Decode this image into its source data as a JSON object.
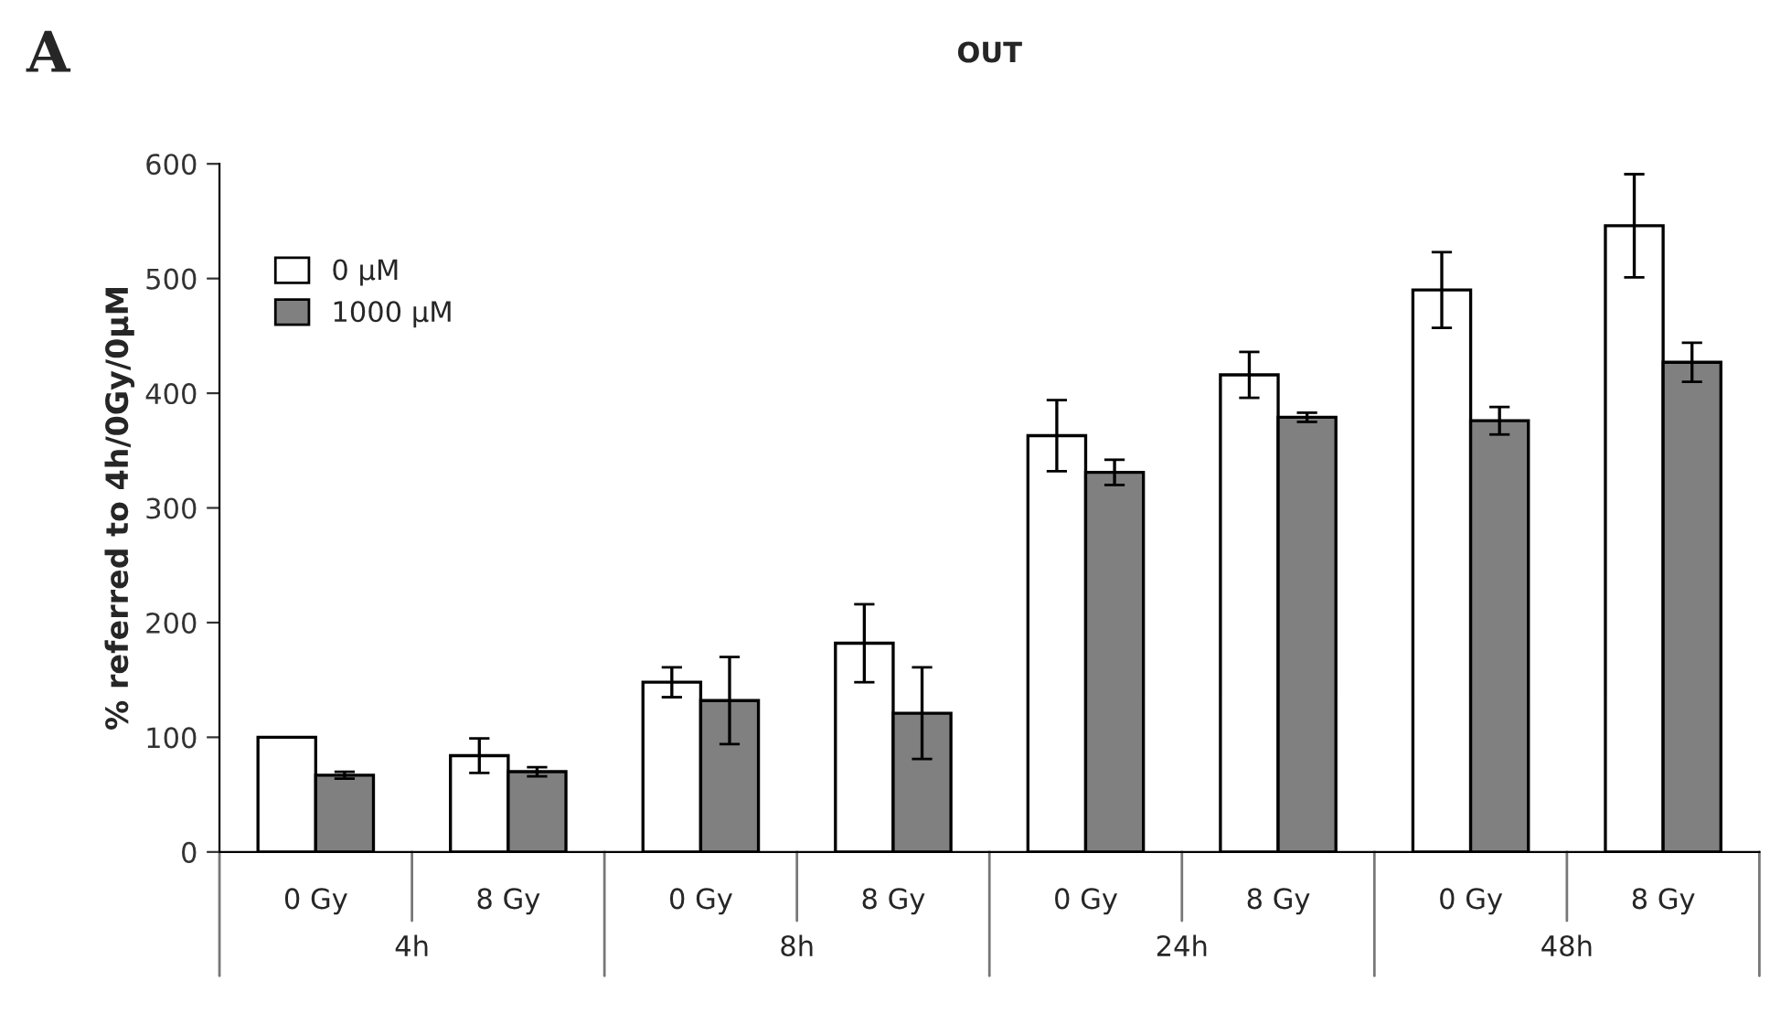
{
  "chart_data": {
    "type": "bar",
    "title": "OUT",
    "ylabel": "% referred to 4h/0Gy/0µM",
    "categories": [
      "0 Gy",
      "8 Gy",
      "0 Gy",
      "8 Gy",
      "0 Gy",
      "8 Gy",
      "0 Gy",
      "8 Gy"
    ],
    "series": [
      {
        "name": "0 µM",
        "color": "#ffffff",
        "values": [
          100,
          84,
          148,
          182,
          363,
          416,
          490,
          546
        ],
        "errors": [
          null,
          15,
          13,
          34,
          31,
          20,
          33,
          45
        ]
      },
      {
        "name": "1000 µM",
        "color": "#808080",
        "values": [
          67,
          70,
          132,
          121,
          331,
          379,
          376,
          427
        ],
        "errors": [
          3,
          4,
          38,
          40,
          11,
          4,
          12,
          17
        ]
      }
    ],
    "ylim": [
      0,
      600
    ],
    "yticks": [
      0,
      100,
      200,
      300,
      400,
      500,
      600
    ],
    "grid": false,
    "legend": "top left",
    "annotations": [
      "A",
      "4h",
      "8h",
      "24h",
      "48h"
    ]
  }
}
